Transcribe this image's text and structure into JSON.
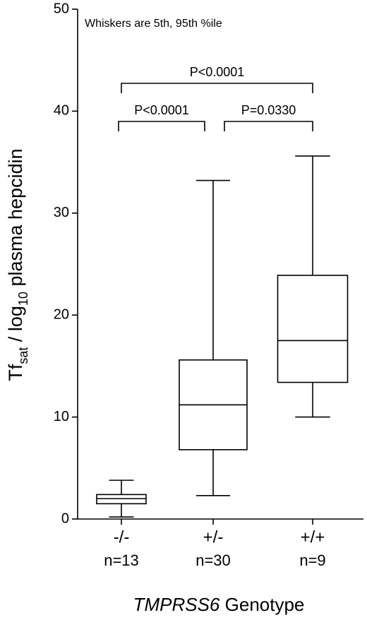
{
  "chart_data": {
    "type": "box",
    "annotation": "Whiskers are 5th, 95th %ile",
    "y_label": [
      {
        "text": "Tf"
      },
      {
        "text": "sat",
        "sub": true
      },
      {
        "text": " / log"
      },
      {
        "text": "10",
        "sub": true
      },
      {
        "text": " plasma hepcidin"
      }
    ],
    "x_label": [
      {
        "text": "TMPRSS6",
        "italic": true
      },
      {
        "text": " Genotype"
      }
    ],
    "categories": [
      "-/-",
      "+/-",
      "+/+"
    ],
    "n_labels": [
      "n=13",
      "n=30",
      "n=9"
    ],
    "boxes": [
      {
        "whislo": 0.2,
        "q1": 1.5,
        "med": 2.0,
        "q3": 2.4,
        "whishi": 3.8
      },
      {
        "whislo": 2.3,
        "q1": 6.8,
        "med": 11.2,
        "q3": 15.6,
        "whishi": 33.2
      },
      {
        "whislo": 10.0,
        "q1": 13.4,
        "med": 17.5,
        "q3": 23.9,
        "whishi": 35.6
      }
    ],
    "comparisons": [
      {
        "from": 0,
        "to": 2,
        "label": "P<0.0001"
      },
      {
        "from": 0,
        "to": 1,
        "label": "P<0.0001"
      },
      {
        "from": 1,
        "to": 2,
        "label": "P=0.0330"
      }
    ],
    "ylim": [
      0,
      50
    ],
    "yticks": [
      0,
      10,
      20,
      30,
      40,
      50
    ],
    "color": "#000000"
  }
}
